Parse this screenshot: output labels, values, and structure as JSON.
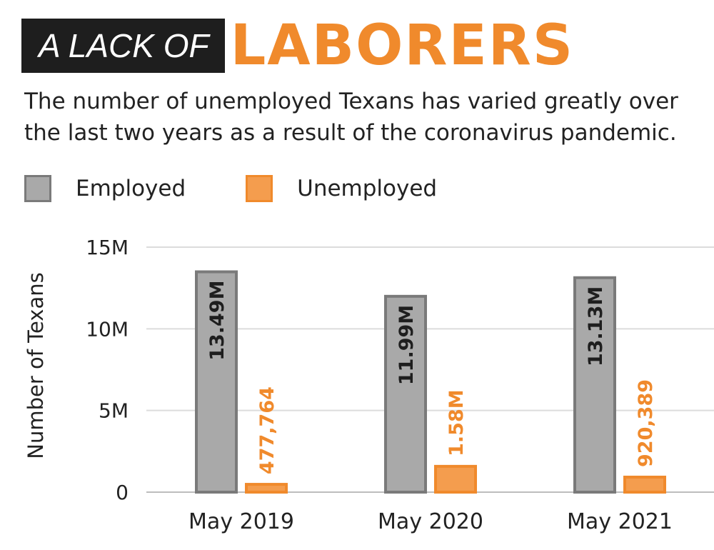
{
  "title": {
    "prefix": "A LACK OF",
    "highlight": "LABORERS"
  },
  "subtitle": "The number of unemployed Texans has varied greatly over the last two years as a result of the coronavirus pandemic.",
  "legend": {
    "employed": "Employed",
    "unemployed": "Unemployed"
  },
  "colors": {
    "employed_fill": "#a9a9a9",
    "employed_stroke": "#7a7a7a",
    "unemployed_fill": "#f49d4e",
    "unemployed_stroke": "#f08a2c",
    "accent": "#f08a2c",
    "title_bg": "#1e1e1e"
  },
  "chart_data": {
    "type": "bar",
    "categories": [
      "May 2019",
      "May 2020",
      "May 2021"
    ],
    "series": [
      {
        "name": "Employed",
        "values": [
          13490000,
          11990000,
          13130000
        ],
        "labels": [
          "13.49M",
          "11.99M",
          "13.13M"
        ]
      },
      {
        "name": "Unemployed",
        "values": [
          477764,
          1580000,
          920389
        ],
        "labels": [
          "477,764",
          "1.58M",
          "920,389"
        ]
      }
    ],
    "ylabel": "Number of Texans",
    "xlabel": "",
    "ylim": [
      0,
      15000000
    ],
    "yticks": [
      0,
      5000000,
      10000000,
      15000000
    ],
    "ytick_labels": [
      "0",
      "5M",
      "10M",
      "15M"
    ],
    "grid": true,
    "legend_position": "top-left"
  }
}
